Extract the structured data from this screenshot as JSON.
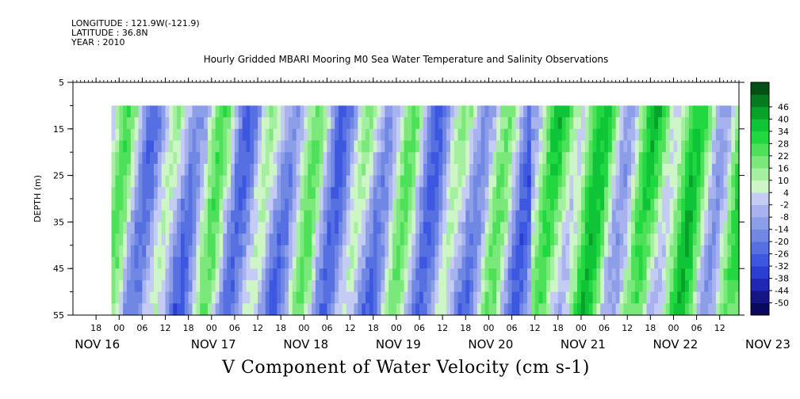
{
  "header": {
    "longitude": "LONGITUDE : 121.9W(-121.9)",
    "latitude": "LATITUDE : 36.8N",
    "year": "YEAR : 2010"
  },
  "chart_data": {
    "type": "heatmap",
    "title": "Hourly Gridded MBARI Mooring M0 Sea Water Temperature and Salinity Observations",
    "xlabel": "V Component of Water Velocity (cm s-1)",
    "ylabel": "DEPTH (m)",
    "y_ticks": [
      5,
      15,
      25,
      35,
      45,
      55
    ],
    "ylim": [
      55,
      5
    ],
    "data_depth_range": [
      10,
      55
    ],
    "hour_ticks": [
      "18",
      "00",
      "06",
      "12",
      "18",
      "00",
      "06",
      "12",
      "18",
      "00",
      "06",
      "12",
      "18",
      "00",
      "06",
      "12",
      "18",
      "00",
      "06",
      "12",
      "18",
      "00",
      "06",
      "12",
      "18",
      "00",
      "06",
      "12",
      "18",
      "00",
      "06",
      "12",
      "18",
      "00",
      "06",
      "12"
    ],
    "day_labels": [
      "NOV 16",
      "NOV 17",
      "NOV 18",
      "NOV 19",
      "NOV 20",
      "NOV 21",
      "NOV 22",
      "NOV 23"
    ],
    "time_range": [
      "2010-11-16 12:00",
      "2010-11-23 17:00"
    ],
    "data_start": "2010-11-16 22:00",
    "colorbar": {
      "levels": [
        -50,
        -44,
        -38,
        -32,
        -26,
        -20,
        -14,
        -8,
        -2,
        4,
        10,
        16,
        22,
        28,
        34,
        40,
        46
      ],
      "colors": [
        "#0a0a5c",
        "#141487",
        "#1e28b4",
        "#2a3fd2",
        "#3d58e0",
        "#5670e2",
        "#7088e4",
        "#8c9ee8",
        "#a8b2ee",
        "#c4ccf4",
        "#cdf5c6",
        "#a4f0a0",
        "#7ae87a",
        "#4fe05a",
        "#22d841",
        "#10c438",
        "#08a22a",
        "#067a20",
        "#044f15"
      ]
    }
  }
}
